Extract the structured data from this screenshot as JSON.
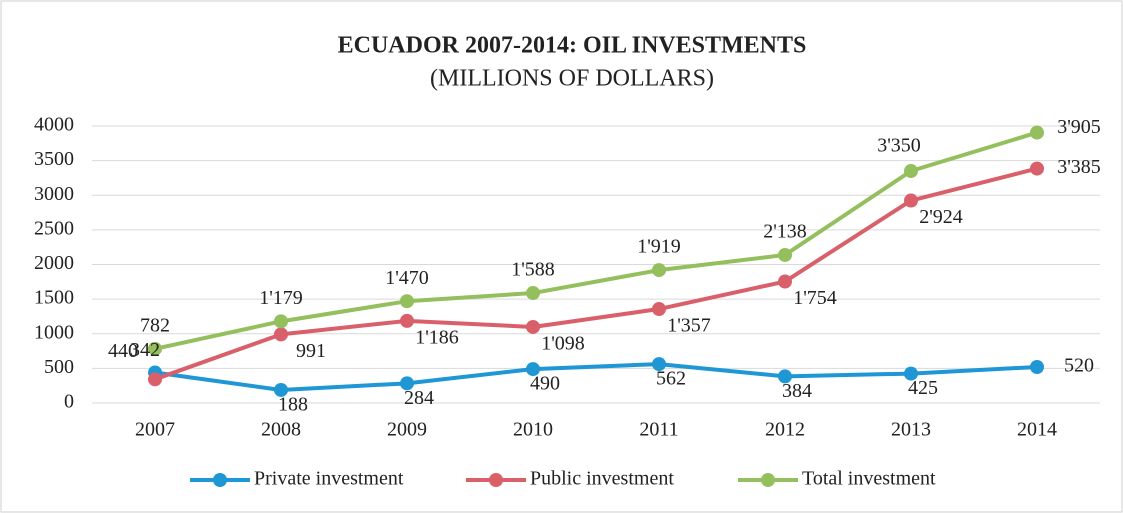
{
  "chart_data": {
    "type": "line",
    "title": "ECUADOR 2007-2014: OIL INVESTMENTS",
    "subtitle": "(MILLIONS OF DOLLARS)",
    "categories": [
      "2007",
      "2008",
      "2009",
      "2010",
      "2011",
      "2012",
      "2013",
      "2014"
    ],
    "series": [
      {
        "name": "Private investment",
        "color": "#1f97d4",
        "values": [
          440,
          188,
          284,
          490,
          562,
          384,
          425,
          520
        ]
      },
      {
        "name": "Public investment",
        "color": "#d9606a",
        "values": [
          342,
          991,
          1186,
          1098,
          1357,
          1754,
          2924,
          3385
        ],
        "value_labels": [
          "342",
          "991",
          "1'186",
          "1'098",
          "1'357",
          "1'754",
          "2'924",
          "3'385"
        ]
      },
      {
        "name": "Total investment",
        "color": "#93bf5c",
        "values": [
          782,
          1179,
          1470,
          1588,
          1919,
          2138,
          3350,
          3905
        ],
        "value_labels": [
          "782",
          "1'179",
          "1'470",
          "1'588",
          "1'919",
          "2'138",
          "3'350",
          "3'905"
        ]
      }
    ],
    "ylim": [
      0,
      4000
    ],
    "yticks": [
      0,
      500,
      1000,
      1500,
      2000,
      2500,
      3000,
      3500,
      4000
    ],
    "grid": true,
    "legend": "bottom"
  }
}
